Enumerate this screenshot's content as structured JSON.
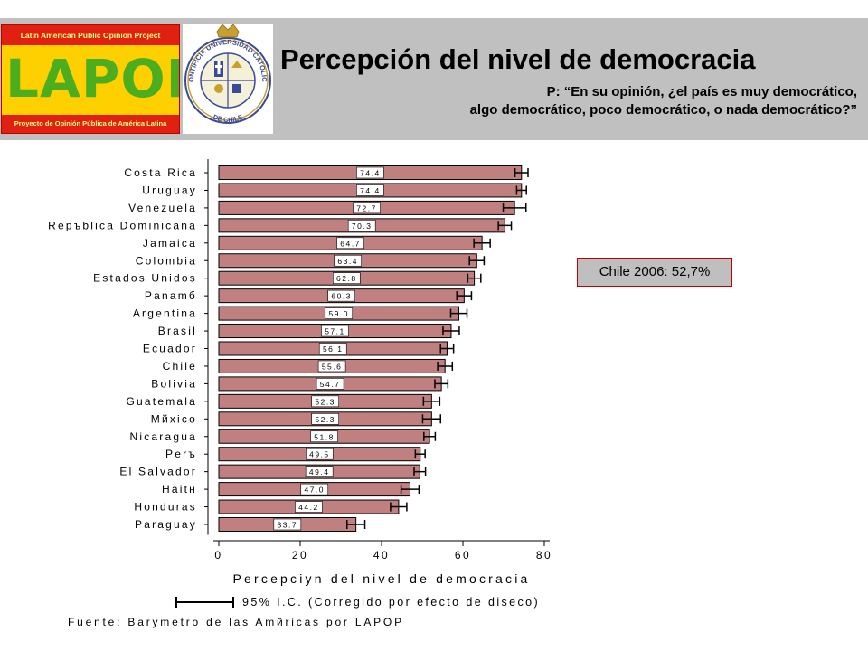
{
  "header": {
    "title": "Percepción del nivel de democracia",
    "subtitle_line1": "P: “En su opinión, ¿el país es muy democrático,",
    "subtitle_line2": "algo democrático, poco democrático, o nada democrático?”"
  },
  "logo": {
    "top_text": "Latin American Public Opinion Project",
    "big_text": "LAPOP",
    "bottom_text": "Proyecto de Opinión Pública de América Latina",
    "seal_text": "PONTIFICIA UNIVERSIDAD CATOLICA DE CHILE"
  },
  "note": {
    "text": "Chile 2006: 52,7%"
  },
  "chart_data": {
    "type": "bar",
    "orientation": "horizontal",
    "categories": [
      "Costa Rica",
      "Uruguay",
      "Venezuela",
      "Repъblica Dominicana",
      "Jamaica",
      "Colombia",
      "Estados Unidos",
      "Panamб",
      "Argentina",
      "Brasil",
      "Ecuador",
      "Chile",
      "Bolivia",
      "Guatemala",
      "Mйxico",
      "Nicaragua",
      "Perъ",
      "El Salvador",
      "Haitн",
      "Honduras",
      "Paraguay"
    ],
    "value_labels": [
      "74.4",
      "74.4",
      "72.7",
      "70.3",
      "64.7",
      "63.4",
      "62.8",
      "60.3",
      "59.0",
      "57.1",
      "56.1",
      "55.6",
      "54.7",
      "52.3",
      "52.3",
      "51.8",
      "49.5",
      "49.4",
      "47.0",
      "44.2",
      "33.7"
    ],
    "values": [
      74.4,
      74.4,
      72.7,
      70.3,
      64.7,
      63.4,
      62.8,
      60.3,
      59.0,
      57.1,
      56.1,
      55.6,
      54.7,
      52.3,
      52.3,
      51.8,
      49.5,
      49.4,
      47.0,
      44.2,
      33.7
    ],
    "ci_half_width": [
      1.6,
      1.2,
      2.8,
      1.6,
      2.0,
      1.8,
      1.6,
      1.8,
      2.0,
      2.0,
      1.6,
      1.8,
      1.6,
      2.0,
      2.2,
      1.4,
      1.2,
      1.4,
      2.2,
      2.0,
      2.2
    ],
    "xlim": [
      0,
      80
    ],
    "xticks": [
      "0",
      "20",
      "40",
      "60",
      "80"
    ],
    "xlabel": "Percepciуn del nivel de democracia",
    "legend": "95% I.C. (Corregido por efecto de diseсo)",
    "source": "Fuente: Barуmetro de las Amйricas por LAPOP",
    "bar_color": "#c08080",
    "bar_border": "#000000"
  }
}
